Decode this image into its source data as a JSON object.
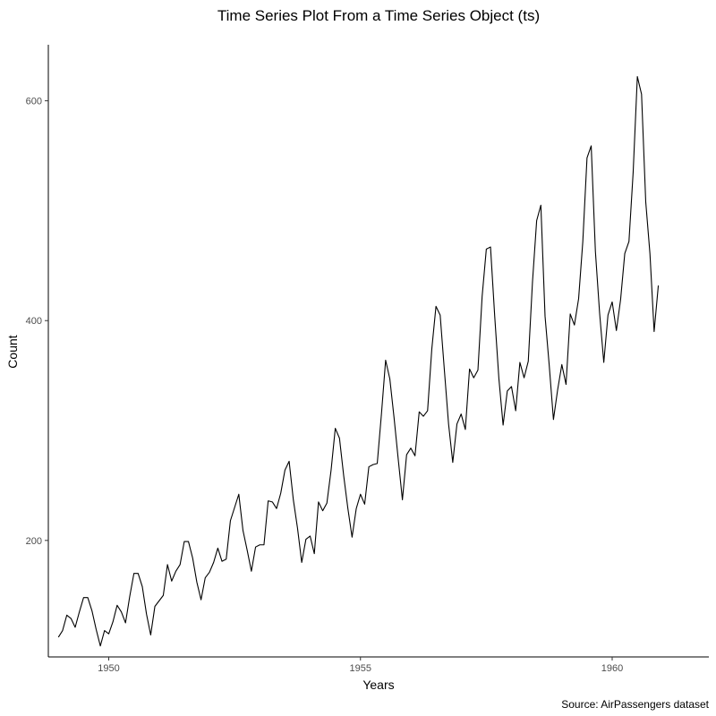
{
  "chart_data": {
    "type": "line",
    "title": "Time Series Plot From a Time Series Object (ts)",
    "xlabel": "Years",
    "ylabel": "Count",
    "caption": "Source: AirPassengers dataset",
    "xlim": [
      1948.8,
      1961.92
    ],
    "ylim": [
      94,
      651
    ],
    "x_ticks": [
      1950,
      1955,
      1960
    ],
    "y_ticks": [
      200,
      400,
      600
    ],
    "grid": false,
    "line_color": "#000000",
    "start": 1949,
    "frequency": 12,
    "series": [
      {
        "values": [
          112,
          118,
          132,
          129,
          121,
          135,
          148,
          148,
          136,
          119,
          104,
          118,
          115,
          126,
          141,
          135,
          125,
          149,
          170,
          170,
          158,
          133,
          114,
          140,
          145,
          150,
          178,
          163,
          172,
          178,
          199,
          199,
          184,
          162,
          146,
          166,
          171,
          180,
          193,
          181,
          183,
          218,
          230,
          242,
          209,
          191,
          172,
          194,
          196,
          196,
          236,
          235,
          229,
          243,
          264,
          272,
          237,
          211,
          180,
          201,
          204,
          188,
          235,
          227,
          234,
          264,
          302,
          293,
          259,
          229,
          203,
          229,
          242,
          233,
          267,
          269,
          270,
          315,
          364,
          347,
          312,
          274,
          237,
          278,
          284,
          277,
          317,
          313,
          318,
          374,
          413,
          405,
          355,
          306,
          271,
          306,
          315,
          301,
          356,
          348,
          355,
          422,
          465,
          467,
          404,
          347,
          305,
          336,
          340,
          318,
          362,
          348,
          363,
          435,
          491,
          505,
          404,
          359,
          310,
          337,
          360,
          342,
          406,
          396,
          420,
          472,
          548,
          559,
          463,
          407,
          362,
          405,
          417,
          391,
          419,
          461,
          472,
          535,
          622,
          606,
          508,
          461,
          390,
          432
        ]
      }
    ]
  }
}
